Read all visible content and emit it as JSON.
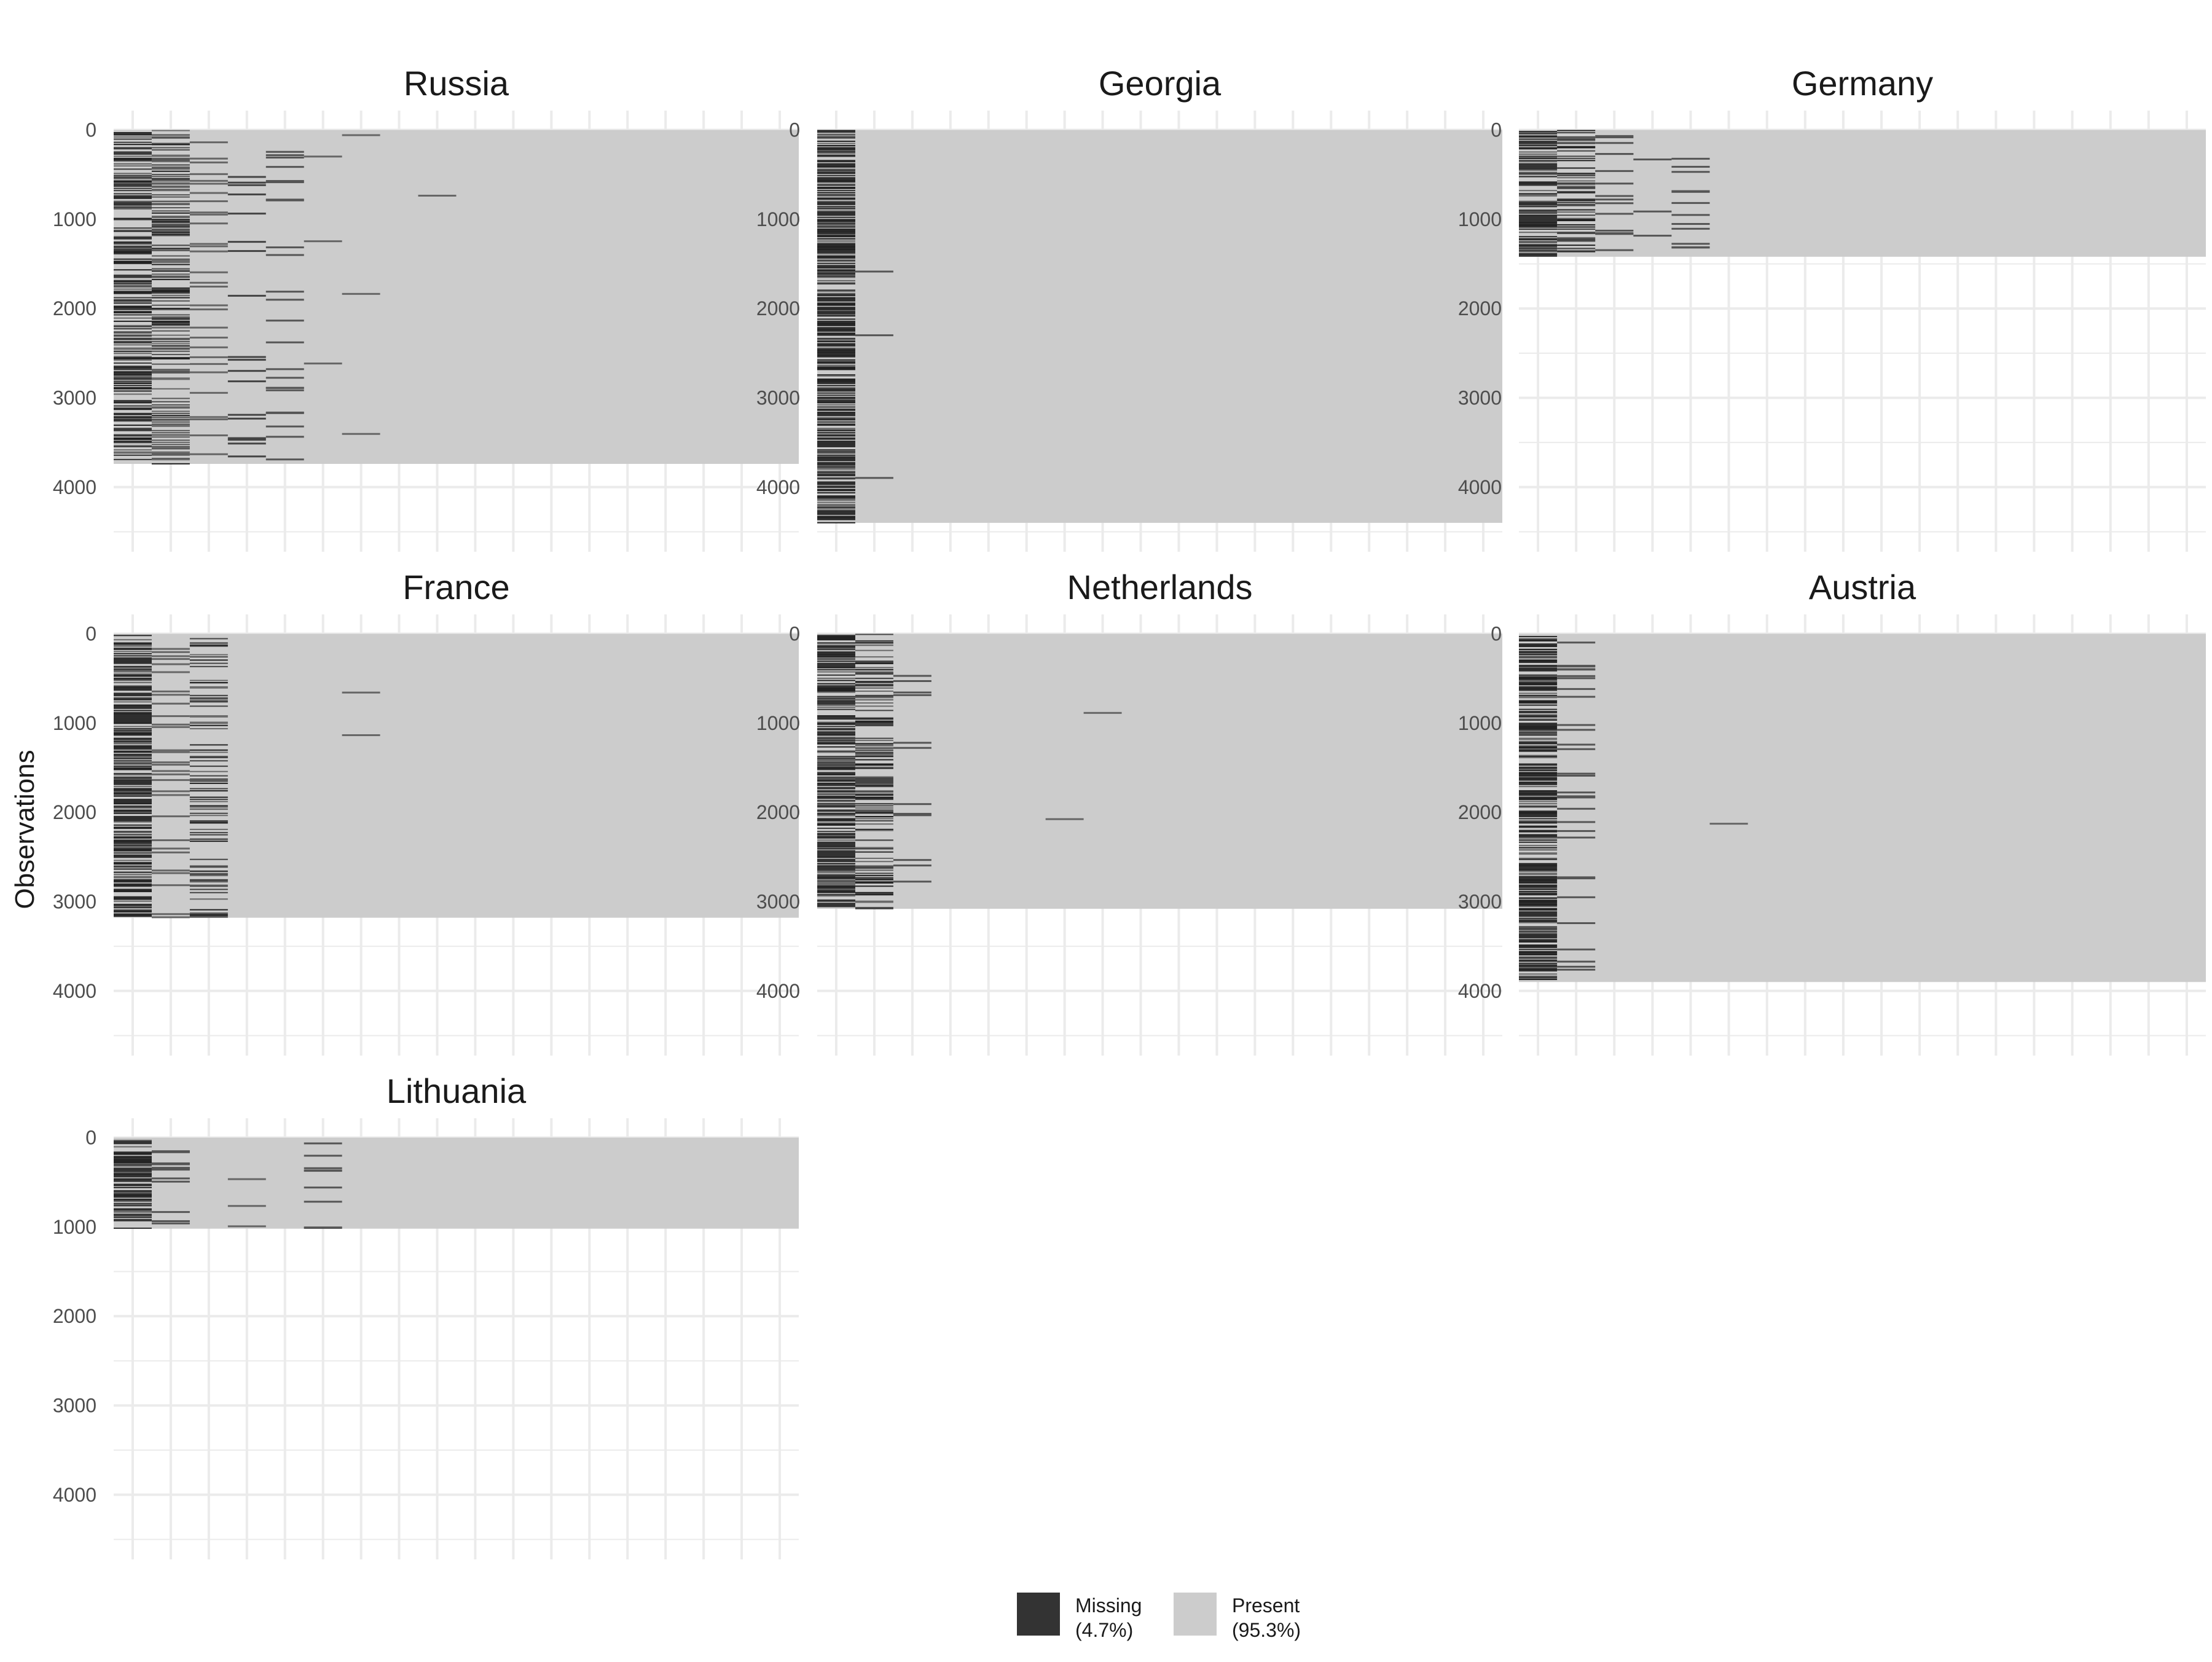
{
  "chart_data": {
    "type": "heatmap",
    "description_style": "missingness map faceted by country",
    "ylabel": "Observations",
    "ylim": [
      0,
      4600
    ],
    "yticks": [
      0,
      1000,
      2000,
      3000,
      4000
    ],
    "n_variables": 18,
    "grid": true,
    "reversed_y": true,
    "colors": {
      "missing": "#333333",
      "present": "#cccccc",
      "grid": "#ebebeb"
    },
    "legend": {
      "position": "bottom",
      "items": [
        {
          "key": "missing",
          "label": "Missing",
          "pct": "(4.7%)",
          "color": "#333333"
        },
        {
          "key": "present",
          "label": "Present",
          "pct": "(95.3%)",
          "color": "#cccccc"
        }
      ]
    },
    "panels": [
      {
        "name": "Russia",
        "n_obs": 3740,
        "missing_columns": [
          {
            "col": 0,
            "density": 0.55,
            "shade": "#3a3a3a"
          },
          {
            "col": 1,
            "density": 0.45,
            "shade": "#555555"
          },
          {
            "col": 2,
            "density": 0.1,
            "shade": "#666666"
          },
          {
            "col": 3,
            "density": 0.06,
            "shade": "#444444"
          },
          {
            "col": 4,
            "density": 0.08,
            "shade": "#555555"
          },
          {
            "col": 5,
            "density": 0.01,
            "shade": "#666666"
          },
          {
            "col": 6,
            "density": 0.01,
            "shade": "#666666"
          },
          {
            "col": 8,
            "density": 0.003,
            "shade": "#666666"
          }
        ]
      },
      {
        "name": "Georgia",
        "n_obs": 4400,
        "missing_columns": [
          {
            "col": 0,
            "density": 0.75,
            "shade": "#2e2e2e"
          },
          {
            "col": 1,
            "density": 0.01,
            "shade": "#555555"
          }
        ]
      },
      {
        "name": "Germany",
        "n_obs": 1420,
        "missing_columns": [
          {
            "col": 0,
            "density": 0.65,
            "shade": "#333333"
          },
          {
            "col": 1,
            "density": 0.55,
            "shade": "#444444"
          },
          {
            "col": 2,
            "density": 0.05,
            "shade": "#555555"
          },
          {
            "col": 3,
            "density": 0.01,
            "shade": "#555555"
          },
          {
            "col": 4,
            "density": 0.04,
            "shade": "#555555"
          }
        ]
      },
      {
        "name": "France",
        "n_obs": 3180,
        "missing_columns": [
          {
            "col": 0,
            "density": 0.72,
            "shade": "#2e2e2e"
          },
          {
            "col": 1,
            "density": 0.1,
            "shade": "#666666"
          },
          {
            "col": 2,
            "density": 0.3,
            "shade": "#444444"
          },
          {
            "col": 6,
            "density": 0.005,
            "shade": "#666666"
          }
        ]
      },
      {
        "name": "Netherlands",
        "n_obs": 3080,
        "missing_columns": [
          {
            "col": 0,
            "density": 0.7,
            "shade": "#333333"
          },
          {
            "col": 1,
            "density": 0.35,
            "shade": "#444444"
          },
          {
            "col": 2,
            "density": 0.04,
            "shade": "#555555"
          },
          {
            "col": 6,
            "density": 0.002,
            "shade": "#666666"
          },
          {
            "col": 7,
            "density": 0.002,
            "shade": "#666666"
          }
        ]
      },
      {
        "name": "Austria",
        "n_obs": 3900,
        "missing_columns": [
          {
            "col": 0,
            "density": 0.7,
            "shade": "#2e2e2e"
          },
          {
            "col": 1,
            "density": 0.1,
            "shade": "#555555"
          },
          {
            "col": 5,
            "density": 0.002,
            "shade": "#666666"
          }
        ]
      },
      {
        "name": "Lithuania",
        "n_obs": 1020,
        "missing_columns": [
          {
            "col": 0,
            "density": 0.65,
            "shade": "#333333"
          },
          {
            "col": 1,
            "density": 0.04,
            "shade": "#555555"
          },
          {
            "col": 3,
            "density": 0.01,
            "shade": "#666666"
          },
          {
            "col": 5,
            "density": 0.03,
            "shade": "#555555"
          }
        ]
      }
    ]
  }
}
